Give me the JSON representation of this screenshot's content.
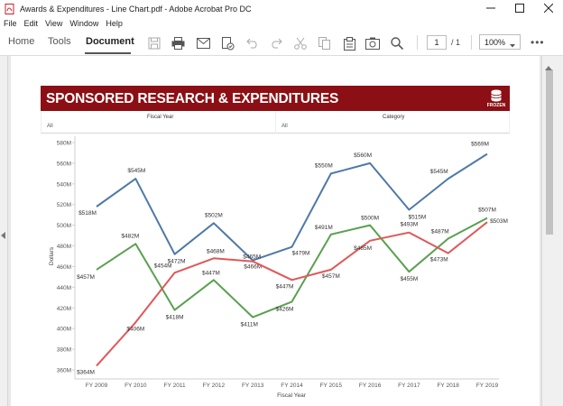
{
  "window": {
    "title": "Awards & Expenditures - Line Chart.pdf - Adobe Acrobat Pro DC"
  },
  "menu": {
    "items": [
      "File",
      "Edit",
      "View",
      "Window",
      "Help"
    ]
  },
  "toolbar": {
    "tabs": [
      {
        "label": "Home"
      },
      {
        "label": "Tools"
      },
      {
        "label": "Document"
      }
    ],
    "page_current": "1",
    "page_total": "/ 1",
    "zoom": "100%"
  },
  "report": {
    "title": "SPONSORED RESEARCH & EXPENDITURES",
    "badge": "FROZEN",
    "brand_color": "#8b0f14",
    "filters": [
      {
        "title": "Fiscal Year",
        "value": "All"
      },
      {
        "title": "Category",
        "value": "All"
      }
    ]
  },
  "chart_data": {
    "type": "line",
    "title": "",
    "xlabel": "Fiscal Year",
    "ylabel": "Dollars",
    "ylim": [
      355,
      585
    ],
    "yticks": [
      360,
      380,
      400,
      420,
      440,
      460,
      480,
      500,
      520,
      540,
      560,
      580
    ],
    "ytick_labels": [
      "360M",
      "380M",
      "400M",
      "420M",
      "440M",
      "460M",
      "480M",
      "500M",
      "520M",
      "540M",
      "560M",
      "580M"
    ],
    "categories": [
      "FY 2009",
      "FY 2010",
      "FY 2011",
      "FY 2012",
      "FY 2013",
      "FY 2014",
      "FY 2015",
      "FY 2016",
      "FY 2017",
      "FY 2018",
      "FY 2019"
    ],
    "grid": false,
    "series": [
      {
        "color": "#4e79a7",
        "values": [
          518,
          545,
          472,
          502,
          466,
          479,
          550,
          560,
          515,
          545,
          569
        ],
        "labels": [
          "$518M",
          "$545M",
          "$472M",
          "$502M",
          "$466M",
          "$479M",
          "$550M",
          "$560M",
          "$515M",
          "$545M",
          "$569M"
        ]
      },
      {
        "color": "#59a14f",
        "values": [
          457,
          482,
          418,
          447,
          411,
          426,
          491,
          500,
          455,
          487,
          507
        ],
        "labels": [
          "$457M",
          "$482M",
          "$418M",
          "$447M",
          "$411M",
          "$426M",
          "$491M",
          "$500M",
          "$455M",
          "$487M",
          "$507M"
        ]
      },
      {
        "color": "#e15759",
        "values": [
          364,
          406,
          454,
          468,
          465,
          447,
          457,
          485,
          493,
          473,
          503
        ],
        "labels": [
          "$364M",
          "$406M",
          "$454M",
          "$468M",
          "$465M",
          "$447M",
          "$457M",
          "$485M",
          "$493M",
          "$473M",
          "$503M"
        ]
      }
    ]
  }
}
